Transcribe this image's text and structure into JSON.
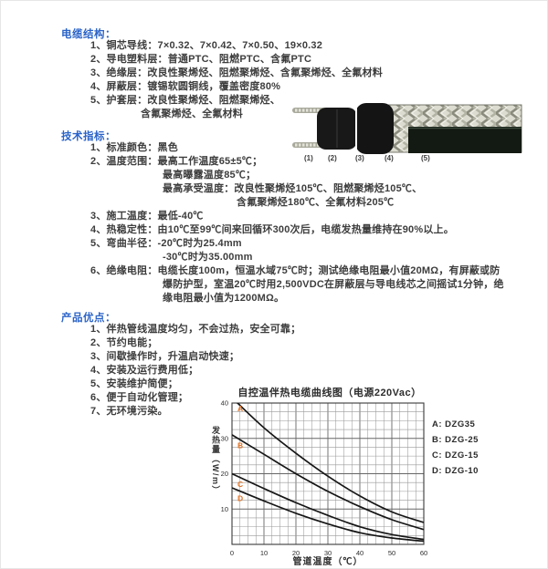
{
  "colors": {
    "heading_blue": "#2a63c8",
    "body_text": "#3d3d3d",
    "curve_black": "#161616",
    "curve_label_orange": "#e0762a"
  },
  "sections": [
    {
      "title": "电缆结构：",
      "lines": [
        {
          "indent": 0,
          "text": "1、铜芯导线：7×0.32、7×0.42、7×0.50、19×0.32"
        },
        {
          "indent": 0,
          "text": "2、导电塑料层：普通PTC、阻燃PTC、含氟PTC"
        },
        {
          "indent": 0,
          "text": "3、绝缘层：改良性聚烯烃、阻燃聚烯烃、含氟聚烯烃、全氟材料"
        },
        {
          "indent": 0,
          "text": "4、屏蔽层：镀锡软圆铜线，覆盖密度80%"
        },
        {
          "indent": 0,
          "text": "5、护套层：改良性聚烯烃、阻燃聚烯烃、"
        },
        {
          "indent": 1,
          "text": "含氟聚烯烃、全氟材料"
        }
      ]
    },
    {
      "title": "技术指标：",
      "lines": [
        {
          "indent": 0,
          "text": "1、标准颜色：黑色"
        },
        {
          "indent": 0,
          "text": "2、温度范围：最高工作温度65±5℃；"
        },
        {
          "indent": 1,
          "text": "最高曝露温度85℃；"
        },
        {
          "indent": 1,
          "text": "最高承受温度：改良性聚烯烃105℃、阻燃聚烯烃105℃、"
        },
        {
          "indent": 2,
          "text": "含氟聚烯烃180℃、全氟材料205℃"
        },
        {
          "indent": 0,
          "text": "3、施工温度：最低-40℃"
        },
        {
          "indent": 0,
          "text": "4、热稳定性：由10℃至99℃间来回循环300次后，电缆发热量维持在90%以上。"
        },
        {
          "indent": 0,
          "text": "5、弯曲半径：-20℃时为25.4mm"
        },
        {
          "indent": 1,
          "text": "-30℃时为35.00mm"
        },
        {
          "indent": 0,
          "text": "6、绝缘电阻：电缆长度100m，恒温水域75℃时；测试绝缘电阻最小值20MΩ，有屏蔽或防"
        },
        {
          "indent": 1,
          "text": "爆防护型，室温20℃时用2,500VDC在屏蔽层与导电线芯之间摇试1分钟，绝"
        },
        {
          "indent": 1,
          "text": "缘电阻最小值为1200MΩ。"
        }
      ]
    },
    {
      "title": "产品优点：",
      "lines": [
        {
          "indent": 0,
          "text": "1、伴热管线温度均匀，不会过热，安全可靠；"
        },
        {
          "indent": 0,
          "text": "2、节约电能；"
        },
        {
          "indent": 0,
          "text": "3、间歇操作时，升温启动快速；"
        },
        {
          "indent": 0,
          "text": "4、安装及运行费用低；"
        },
        {
          "indent": 0,
          "text": "5、安装维护简便；"
        },
        {
          "indent": 0,
          "text": "6、便于自动化管理；"
        },
        {
          "indent": 0,
          "text": "7、无环境污染。"
        }
      ]
    }
  ],
  "cable_figure": {
    "labels": [
      "(1)",
      "(2)",
      "(3)",
      "(4)",
      "(5)"
    ]
  },
  "chart_data": {
    "type": "line",
    "title": "自控温伴热电缆曲线图（电源220Vac）",
    "xlabel": "管道温度（℃）",
    "ylabel": "发热量（W/m）",
    "xlim": [
      0,
      60
    ],
    "ylim": [
      0,
      40
    ],
    "xticks": [
      0,
      10,
      20,
      30,
      40,
      50,
      60
    ],
    "yticks": [
      10,
      20,
      30,
      40
    ],
    "minor_step": 2.5,
    "grid": true,
    "legend_position": "right",
    "x": [
      0,
      10,
      20,
      30,
      40,
      50,
      60
    ],
    "series": [
      {
        "name": "A",
        "label": "A: DZG35",
        "values": [
          41.5,
          33,
          25.8,
          19.3,
          13.7,
          9.2,
          6.2
        ]
      },
      {
        "name": "B",
        "label": "B: DZG-25",
        "values": [
          31,
          25.5,
          20,
          15,
          10.7,
          7,
          4.2
        ]
      },
      {
        "name": "C",
        "label": "C: DZG-15",
        "values": [
          20,
          15.8,
          11.8,
          8.2,
          5,
          2.8,
          1.4
        ]
      },
      {
        "name": "D",
        "label": "D: DZG-10",
        "values": [
          16,
          12.3,
          8.8,
          5.8,
          3.3,
          1.8,
          0.9
        ]
      }
    ]
  }
}
